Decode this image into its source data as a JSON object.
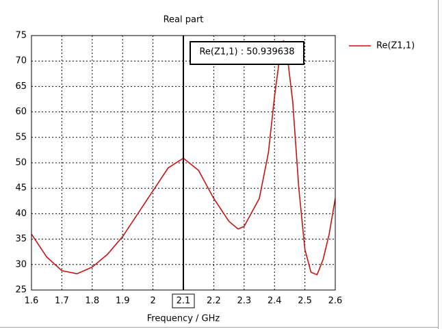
{
  "chart_data": {
    "type": "line",
    "title": "Real part",
    "xlabel": "Frequency / GHz",
    "x": [
      1.6,
      1.65,
      1.7,
      1.75,
      1.8,
      1.85,
      1.9,
      1.95,
      2.0,
      2.05,
      2.1,
      2.15,
      2.2,
      2.25,
      2.28,
      2.3,
      2.35,
      2.38,
      2.4,
      2.42,
      2.43,
      2.44,
      2.46,
      2.48,
      2.5,
      2.52,
      2.54,
      2.56,
      2.58,
      2.6
    ],
    "series": [
      {
        "name": "Re(Z1,1)",
        "color": "#cc1010",
        "values": [
          36,
          31.5,
          28.8,
          28.2,
          29.5,
          32,
          35.5,
          40,
          44.5,
          49,
          50.9,
          48.5,
          43,
          38.5,
          37,
          37.5,
          43,
          52,
          63,
          72,
          74,
          72,
          62,
          45,
          33,
          28.5,
          28,
          31,
          36,
          43
        ]
      }
    ],
    "xlim": [
      1.6,
      2.6
    ],
    "xticks": [
      1.6,
      1.7,
      1.8,
      1.9,
      2,
      2.1,
      2.2,
      2.3,
      2.4,
      2.5,
      2.6
    ],
    "ylim": [
      25,
      75
    ],
    "yticks": [
      25,
      30,
      35,
      40,
      45,
      50,
      55,
      60,
      65,
      70,
      75
    ],
    "grid": true,
    "legend": "top-right",
    "marker_x": 2.1,
    "annotation": "Re(Z1,1) : 50.939638"
  }
}
